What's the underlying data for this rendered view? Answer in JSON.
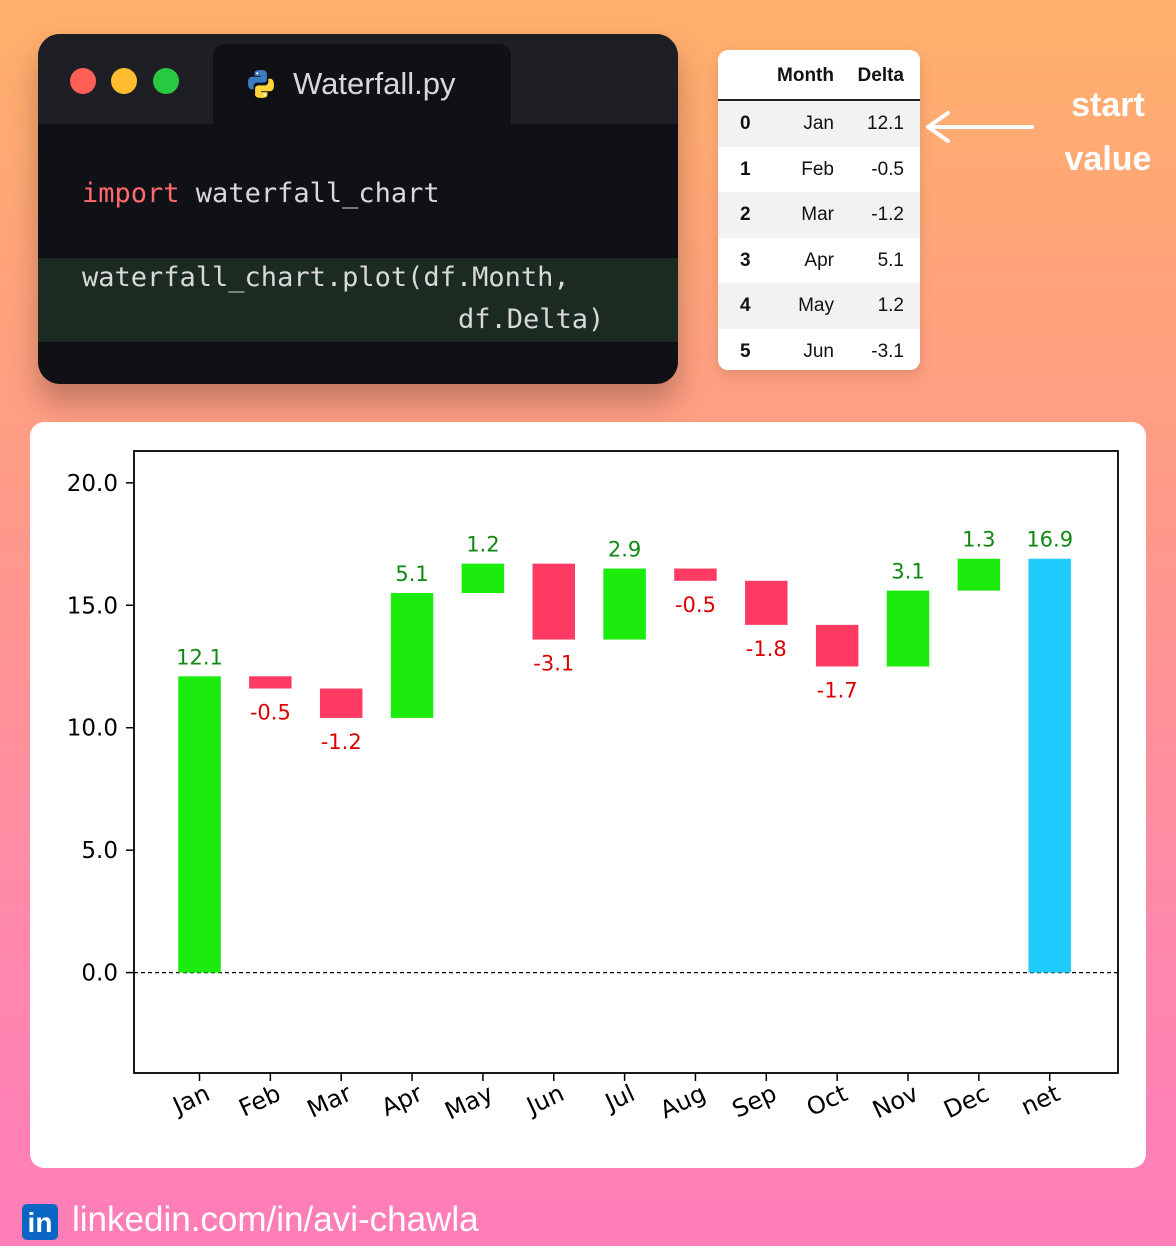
{
  "code_window": {
    "tab_label": "Waterfall.py",
    "tab_icon": "python-icon",
    "line1_keyword": "import",
    "line1_rest": " waterfall_chart",
    "line2": "waterfall_chart.plot(df.Month,",
    "line3": "df.Delta)"
  },
  "dataframe": {
    "headers": [
      "",
      "Month",
      "Delta"
    ],
    "rows": [
      {
        "index": "0",
        "month": "Jan",
        "delta": "12.1"
      },
      {
        "index": "1",
        "month": "Feb",
        "delta": "-0.5"
      },
      {
        "index": "2",
        "month": "Mar",
        "delta": "-1.2"
      },
      {
        "index": "3",
        "month": "Apr",
        "delta": "5.1"
      },
      {
        "index": "4",
        "month": "May",
        "delta": "1.2"
      },
      {
        "index": "5",
        "month": "Jun",
        "delta": "-3.1"
      }
    ]
  },
  "annotation": {
    "line1": "start",
    "line2": "value"
  },
  "footer": {
    "badge": "in",
    "link": "linkedin.com/in/avi-chawla"
  },
  "colors": {
    "increase": "#1cec0d",
    "decrease": "#ff3b64",
    "net": "#1ecbfc",
    "label_increase": "#118811",
    "label_decrease": "#dd0000"
  },
  "chart_data": {
    "type": "bar",
    "title": "",
    "xlabel": "",
    "ylabel": "",
    "categories": [
      "Jan",
      "Feb",
      "Mar",
      "Apr",
      "May",
      "Jun",
      "Jul",
      "Aug",
      "Sep",
      "Oct",
      "Nov",
      "Dec",
      "net"
    ],
    "values": [
      12.1,
      -0.5,
      -1.2,
      5.1,
      1.2,
      -3.1,
      2.9,
      -0.5,
      -1.8,
      -1.7,
      3.1,
      1.3,
      16.9
    ],
    "labels": [
      "12.1",
      "-0.5",
      "-1.2",
      "5.1",
      "1.2",
      "-3.1",
      "2.9",
      "-0.5",
      "-1.8",
      "-1.7",
      "3.1",
      "1.3",
      "16.9"
    ],
    "ylim": [
      -4.1,
      21.3
    ],
    "yticks": [
      "0.0",
      "5.0",
      "10.0",
      "15.0",
      "20.0"
    ],
    "ytick_values": [
      0,
      5,
      10,
      15,
      20
    ],
    "zero_line": "dashed",
    "grid": false,
    "legend": "none"
  }
}
